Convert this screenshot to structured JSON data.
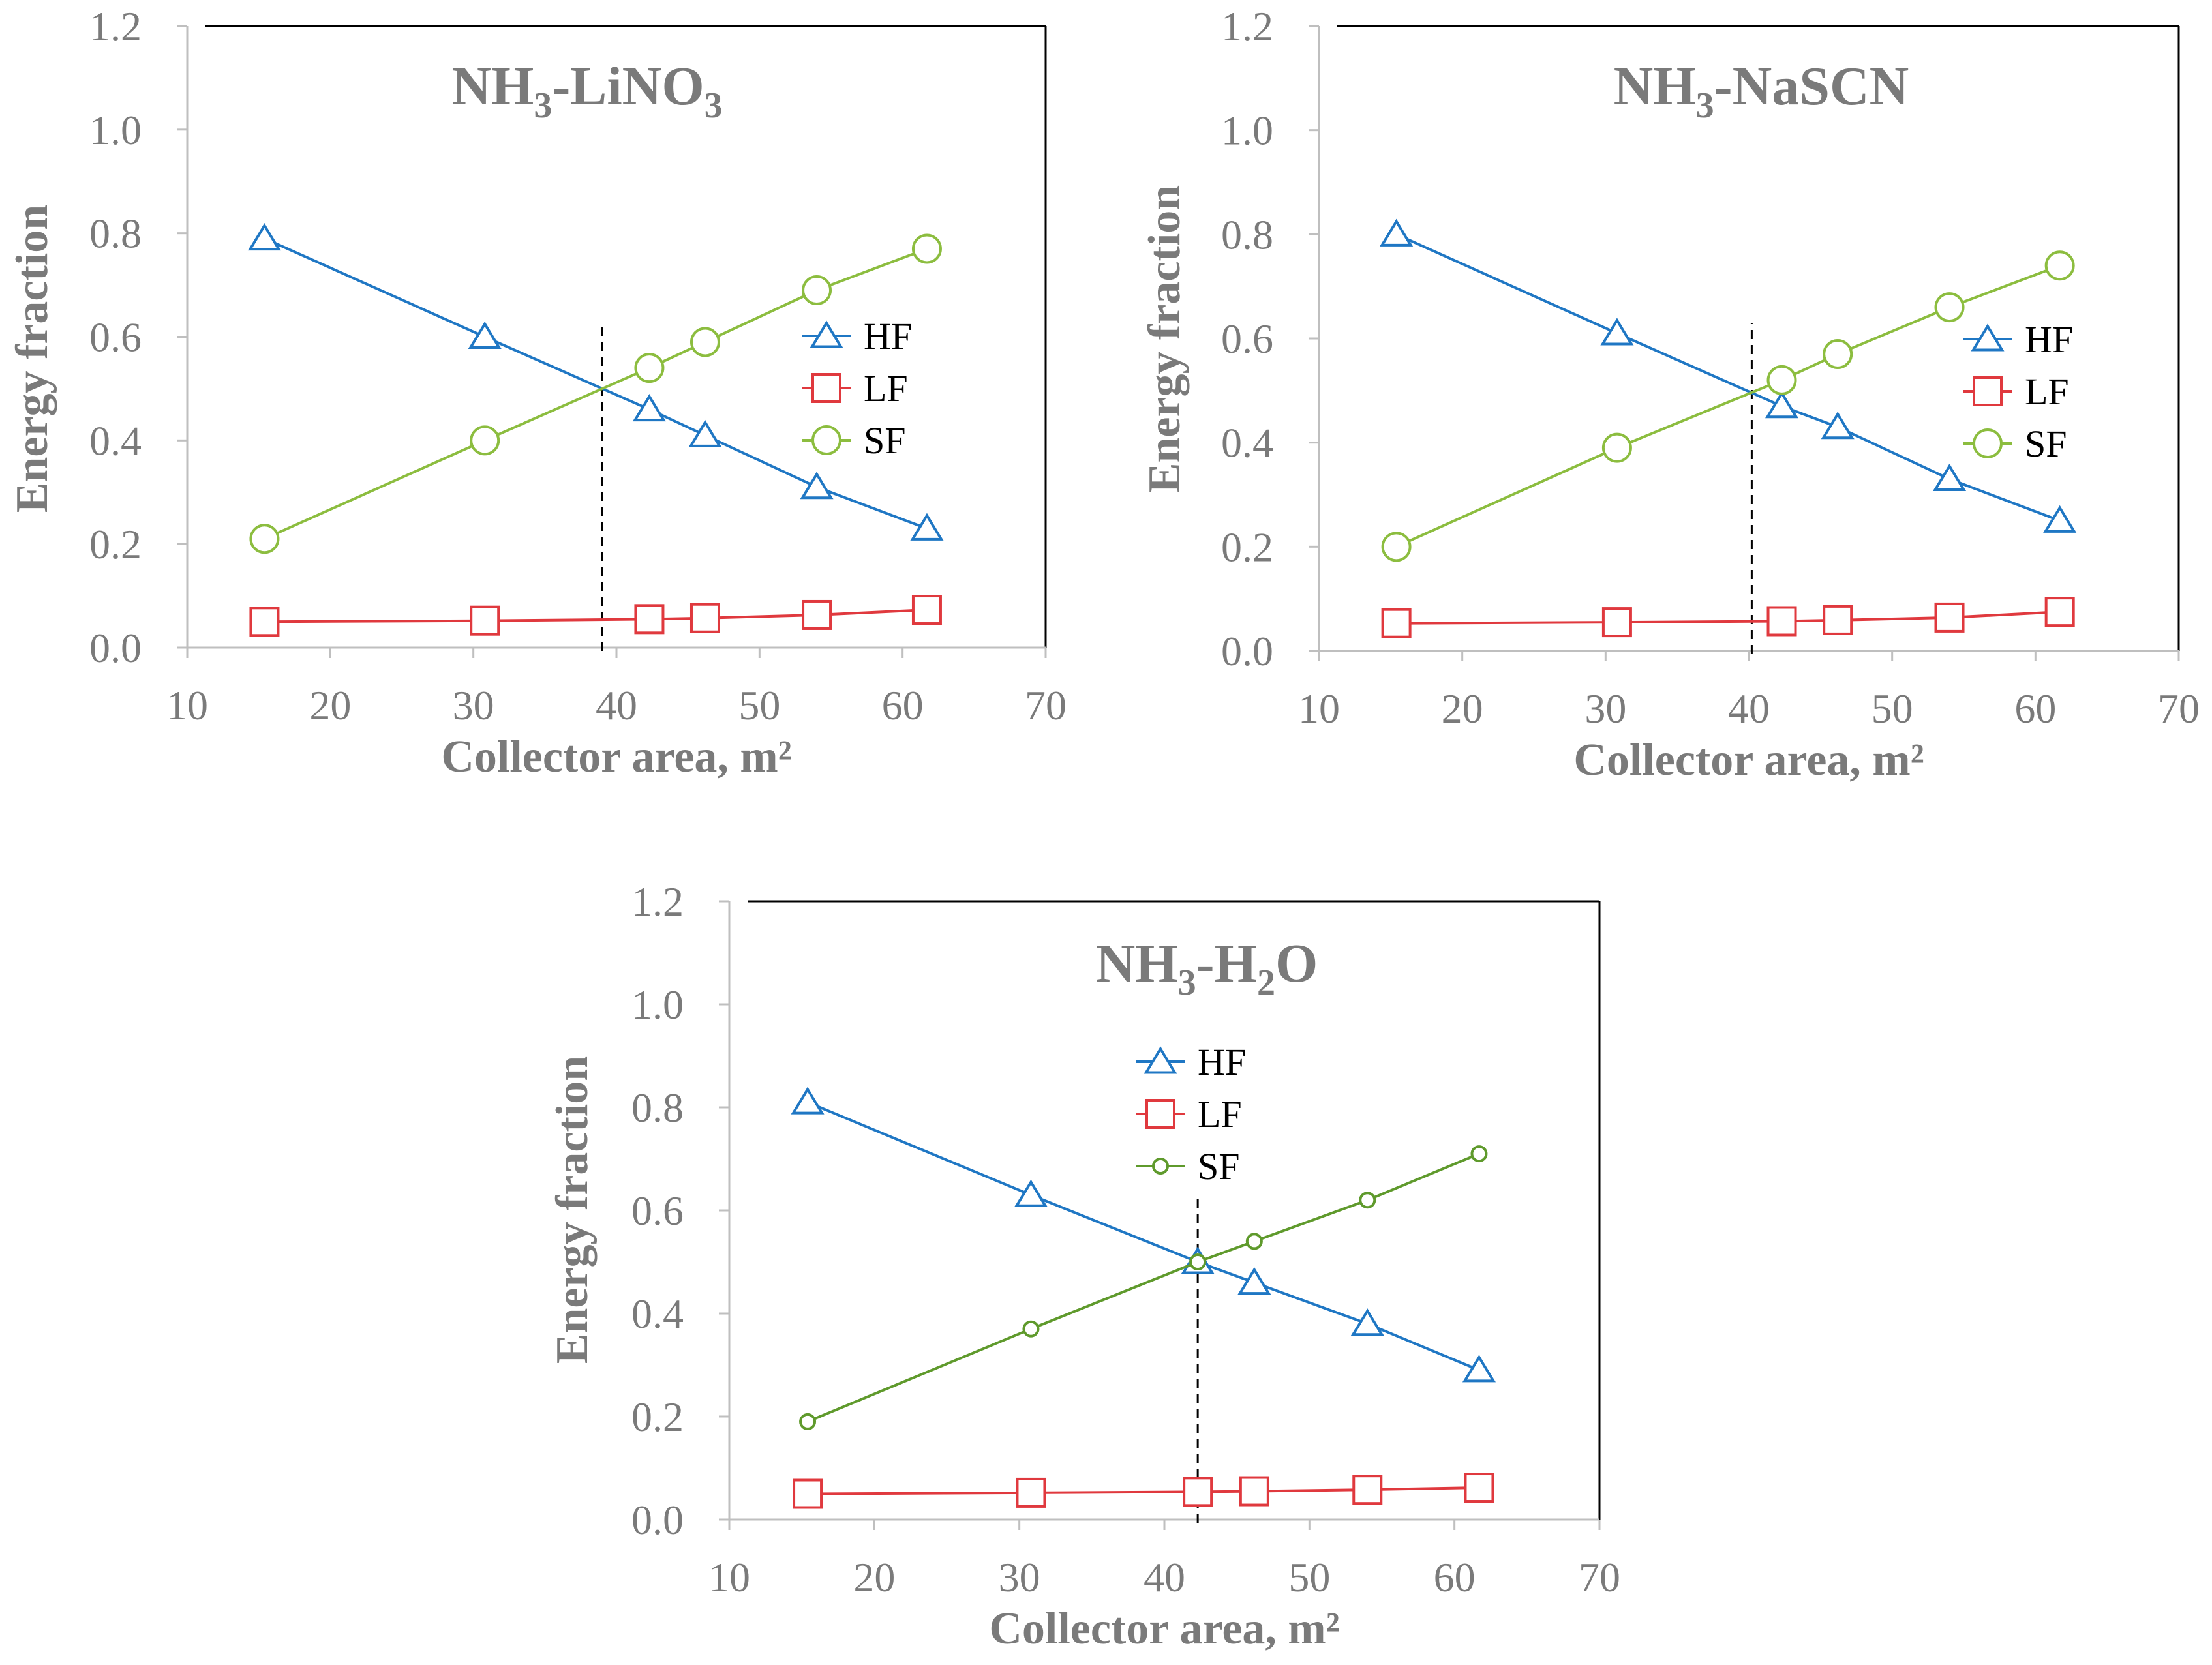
{
  "chart_data": [
    {
      "type": "line",
      "title": "NH3-LiNO3",
      "title_base": "NH",
      "title_sub": "3",
      "title_rest": "-LiNO",
      "title_sub2": "3",
      "title_rest2": "",
      "xlabel": "Collector area, m²",
      "ylabel": "Energy fraction",
      "xlim": [
        10,
        70
      ],
      "ylim": [
        0,
        1.2
      ],
      "xticks": [
        "10",
        "20",
        "30",
        "40",
        "50",
        "60",
        "70"
      ],
      "yticks": [
        "0.0",
        "0.2",
        "0.4",
        "0.6",
        "0.8",
        "1.0",
        "1.2"
      ],
      "legend_position": "right-middle",
      "vline_x": 39,
      "series": [
        {
          "name": "HF",
          "marker": "triangle",
          "color": "#1f77c4",
          "x": [
            15.4,
            30.8,
            42.3,
            46.2,
            54,
            61.7
          ],
          "y": [
            0.79,
            0.6,
            0.46,
            0.41,
            0.31,
            0.23
          ]
        },
        {
          "name": "LF",
          "marker": "square",
          "color": "#e0393e",
          "x": [
            15.4,
            30.8,
            42.3,
            46.2,
            54,
            61.7
          ],
          "y": [
            0.05,
            0.052,
            0.055,
            0.057,
            0.063,
            0.073
          ]
        },
        {
          "name": "SF",
          "marker": "circle",
          "color": "#8cbd3f",
          "x": [
            15.4,
            30.8,
            42.3,
            46.2,
            54,
            61.7
          ],
          "y": [
            0.21,
            0.4,
            0.54,
            0.59,
            0.69,
            0.77
          ]
        }
      ]
    },
    {
      "type": "line",
      "title": "NH3-NaSCN",
      "title_base": "NH",
      "title_sub": "3",
      "title_rest": "-NaSCN",
      "title_sub2": "",
      "title_rest2": "",
      "xlabel": "Collector area, m²",
      "ylabel": "Energy fraction",
      "xlim": [
        10,
        70
      ],
      "ylim": [
        0,
        1.2
      ],
      "xticks": [
        "10",
        "20",
        "30",
        "40",
        "50",
        "60",
        "70"
      ],
      "yticks": [
        "0.0",
        "0.2",
        "0.4",
        "0.6",
        "0.8",
        "1.0",
        "1.2"
      ],
      "legend_position": "right-middle",
      "vline_x": 40.2,
      "series": [
        {
          "name": "HF",
          "marker": "triangle",
          "color": "#1f77c4",
          "x": [
            15.4,
            30.8,
            42.3,
            46.2,
            54,
            61.7
          ],
          "y": [
            0.8,
            0.61,
            0.47,
            0.43,
            0.33,
            0.25
          ]
        },
        {
          "name": "LF",
          "marker": "square",
          "color": "#e0393e",
          "x": [
            15.4,
            30.8,
            42.3,
            46.2,
            54,
            61.7
          ],
          "y": [
            0.053,
            0.055,
            0.057,
            0.059,
            0.064,
            0.075
          ]
        },
        {
          "name": "SF",
          "marker": "circle",
          "color": "#8cbd3f",
          "x": [
            15.4,
            30.8,
            42.3,
            46.2,
            54,
            61.7
          ],
          "y": [
            0.2,
            0.39,
            0.52,
            0.57,
            0.66,
            0.74
          ]
        }
      ]
    },
    {
      "type": "line",
      "title": "NH3-H2O",
      "title_base": "NH",
      "title_sub": "3",
      "title_rest": "-H",
      "title_sub2": "2",
      "title_rest2": "O",
      "xlabel": "Collector area, m²",
      "ylabel": "Energy fraction",
      "xlim": [
        10,
        70
      ],
      "ylim": [
        0,
        1.2
      ],
      "xticks": [
        "10",
        "20",
        "30",
        "40",
        "50",
        "60",
        "70"
      ],
      "yticks": [
        "0.0",
        "0.2",
        "0.4",
        "0.6",
        "0.8",
        "1.0",
        "1.2"
      ],
      "legend_position": "top-center",
      "vline_x": 42.3,
      "series": [
        {
          "name": "HF",
          "marker": "triangle",
          "color": "#1f77c4",
          "x": [
            15.4,
            30.8,
            42.3,
            46.2,
            54,
            61.7
          ],
          "y": [
            0.81,
            0.63,
            0.5,
            0.46,
            0.38,
            0.29
          ]
        },
        {
          "name": "LF",
          "marker": "square",
          "color": "#e0393e",
          "x": [
            15.4,
            30.8,
            42.3,
            46.2,
            54,
            61.7
          ],
          "y": [
            0.05,
            0.052,
            0.054,
            0.055,
            0.058,
            0.062
          ]
        },
        {
          "name": "SF",
          "marker": "dot",
          "color": "#5f9a2c",
          "x": [
            15.4,
            30.8,
            42.3,
            46.2,
            54,
            61.7
          ],
          "y": [
            0.19,
            0.37,
            0.5,
            0.54,
            0.62,
            0.71
          ]
        }
      ]
    }
  ]
}
